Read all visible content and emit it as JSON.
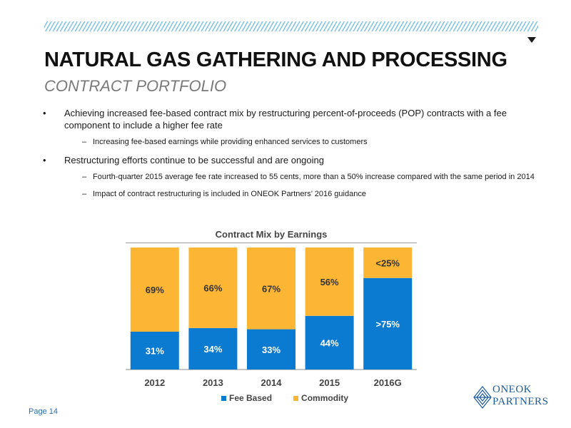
{
  "header": {
    "title": "NATURAL GAS GATHERING AND PROCESSING",
    "subtitle": "CONTRACT PORTFOLIO"
  },
  "bullets": [
    {
      "bullet": "•",
      "text": "Achieving increased fee-based contract mix by restructuring percent-of-proceeds (POP) contracts with a fee component to include a higher fee rate",
      "sub": [
        {
          "dash": "–",
          "text": "Increasing fee-based earnings while providing enhanced services to customers"
        }
      ]
    },
    {
      "bullet": "•",
      "text": "Restructuring efforts continue to be successful and are ongoing",
      "sub": [
        {
          "dash": "–",
          "text": "Fourth-quarter 2015 average fee rate increased to 55 cents, more than a 50% increase compared with the same period in 2014"
        },
        {
          "dash": "–",
          "text": "Impact of contract restructuring is included in ONEOK Partners’ 2016 guidance"
        }
      ]
    }
  ],
  "chart_data": {
    "type": "bar",
    "stacked": true,
    "title": "Contract Mix by Earnings",
    "categories": [
      "2012",
      "2013",
      "2014",
      "2015",
      "2016G"
    ],
    "series": [
      {
        "name": "Fee Based",
        "values": [
          31,
          34,
          33,
          44,
          75
        ],
        "labels": [
          "31%",
          "34%",
          "33%",
          "44%",
          ">75%"
        ],
        "color": "#0b7ad1"
      },
      {
        "name": "Commodity",
        "values": [
          69,
          66,
          67,
          56,
          25
        ],
        "labels": [
          "69%",
          "66%",
          "67%",
          "56%",
          "<25%"
        ],
        "color": "#fdb634"
      }
    ],
    "ylim": [
      0,
      100
    ],
    "legend_position": "bottom",
    "grid": false
  },
  "footer": {
    "page_label": "Page 14",
    "logo_line1": "ONEOK",
    "logo_line2": "PARTNERS"
  }
}
